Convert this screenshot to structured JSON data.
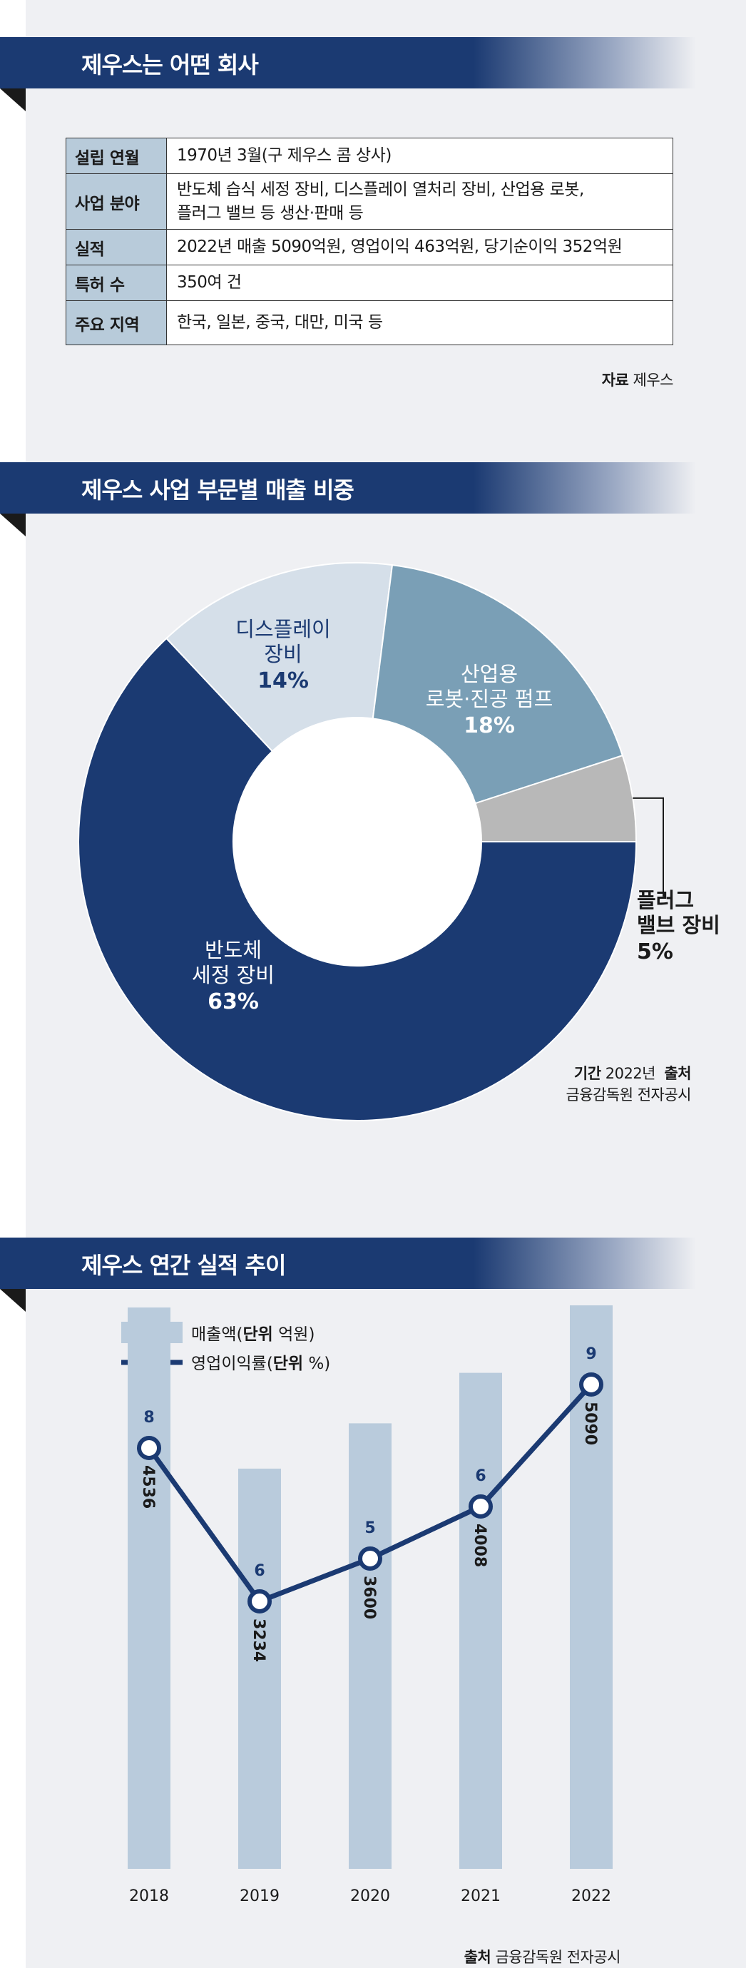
{
  "colors": {
    "navy": "#1b3a72",
    "table_header_bg": "#b8cbda",
    "bar_color": "#b9cbdc",
    "slice_semiconductor": "#1b3a72",
    "slice_display": "#d5dfe9",
    "slice_robot": "#7a9fb6",
    "slice_plug": "#b8b8b8"
  },
  "section1": {
    "title": "제우스는 어떤 회사",
    "rows": [
      {
        "key": "설립 연월",
        "lines": [
          "1970년 3월(구 제우스 콤 상사)"
        ]
      },
      {
        "key": "사업 분야",
        "lines": [
          "반도체 습식 세정 장비, 디스플레이 열처리 장비, 산업용 로봇,",
          "플러그 밸브 등 생산·판매 등"
        ]
      },
      {
        "key": "실적",
        "lines": [
          "2022년 매출 5090억원, 영업이익 463억원, 당기순이익 352억원"
        ]
      },
      {
        "key": "특허 수",
        "lines": [
          "350여 건"
        ]
      },
      {
        "key": "주요 지역",
        "lines": [
          "한국, 일본, 중국, 대만, 미국 등"
        ]
      }
    ],
    "source_label": "자료",
    "source_text": "제우스"
  },
  "section2": {
    "title": "제우스 사업 부문별 매출 비중",
    "period_label": "기간",
    "period_value": "2022년",
    "source_label": "출처",
    "source_text": "금융감독원 전자공시"
  },
  "section3": {
    "title": "제우스 연간 실적 추이",
    "legend_bar": "매출액",
    "legend_bar_unit_label": "단위",
    "legend_bar_unit": "억원",
    "legend_line": "영업이익률",
    "legend_line_unit_label": "단위",
    "legend_line_unit": "%",
    "source_label": "출처",
    "source_text": "금융감독원 전자공시"
  },
  "chart_data": [
    {
      "type": "pie",
      "categories": [
        [
          "반도체",
          "세정 장비"
        ],
        [
          "디스플레이",
          "장비"
        ],
        [
          "산업용",
          "로봇·진공 펌프"
        ],
        [
          "플러그",
          "밸브 장비"
        ]
      ],
      "values": [
        63,
        14,
        18,
        5
      ],
      "value_labels": [
        "63%",
        "14%",
        "18%",
        "5%"
      ]
    },
    {
      "type": "bar",
      "categories": [
        "2018",
        "2019",
        "2020",
        "2021",
        "2022"
      ],
      "series": [
        {
          "name": "매출액",
          "type": "bar",
          "values": [
            4536,
            3234,
            3600,
            4008,
            5090
          ]
        },
        {
          "name": "영업이익률",
          "type": "line",
          "values": [
            8,
            6,
            5,
            6,
            9
          ]
        }
      ]
    }
  ]
}
